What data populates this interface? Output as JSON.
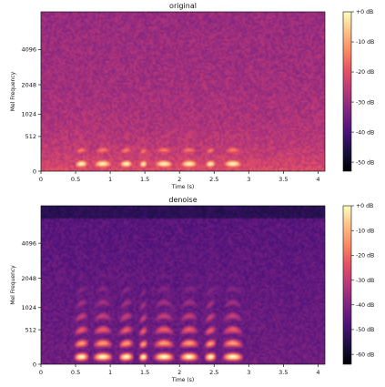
{
  "chart_data": [
    {
      "type": "heatmap",
      "title": "original",
      "xlabel": "Time (s)",
      "ylabel": "Mel Frequency",
      "x_ticks": [
        "0",
        "0.5",
        "1",
        "1.5",
        "2",
        "2.5",
        "3",
        "3.5",
        "4"
      ],
      "x_tick_values": [
        0,
        0.5,
        1,
        1.5,
        2,
        2.5,
        3,
        3.5,
        4
      ],
      "xlim": [
        0,
        4.1
      ],
      "y_ticks": [
        "0",
        "512",
        "1024",
        "2048",
        "4096"
      ],
      "y_tick_values": [
        0,
        512,
        1024,
        2048,
        4096
      ],
      "yscale": "mel",
      "ylim": [
        0,
        8000
      ],
      "colormap": "magma",
      "colorbar": {
        "ticks": [
          "+0 dB",
          "-10 dB",
          "-20 dB",
          "-30 dB",
          "-40 dB",
          "-50 dB"
        ],
        "values": [
          0,
          -10,
          -20,
          -30,
          -40,
          -50
        ],
        "range": [
          -53,
          0
        ]
      }
    },
    {
      "type": "heatmap",
      "title": "denoise",
      "xlabel": "Time (s)",
      "ylabel": "Mel Frequency",
      "x_ticks": [
        "0",
        "0.5",
        "1",
        "1.5",
        "2",
        "2.5",
        "3",
        "3.5",
        "4"
      ],
      "x_tick_values": [
        0,
        0.5,
        1,
        1.5,
        2,
        2.5,
        3,
        3.5,
        4
      ],
      "xlim": [
        0,
        4.1
      ],
      "y_ticks": [
        "0",
        "512",
        "1024",
        "2048",
        "4096"
      ],
      "y_tick_values": [
        0,
        512,
        1024,
        2048,
        4096
      ],
      "yscale": "mel",
      "ylim": [
        0,
        8000
      ],
      "colormap": "magma",
      "colorbar": {
        "ticks": [
          "+0 dB",
          "-10 dB",
          "-20 dB",
          "-30 dB",
          "-40 dB",
          "-50 dB",
          "-60 dB"
        ],
        "values": [
          0,
          -10,
          -20,
          -30,
          -40,
          -50,
          -60
        ],
        "range": [
          -64,
          0
        ]
      }
    }
  ]
}
